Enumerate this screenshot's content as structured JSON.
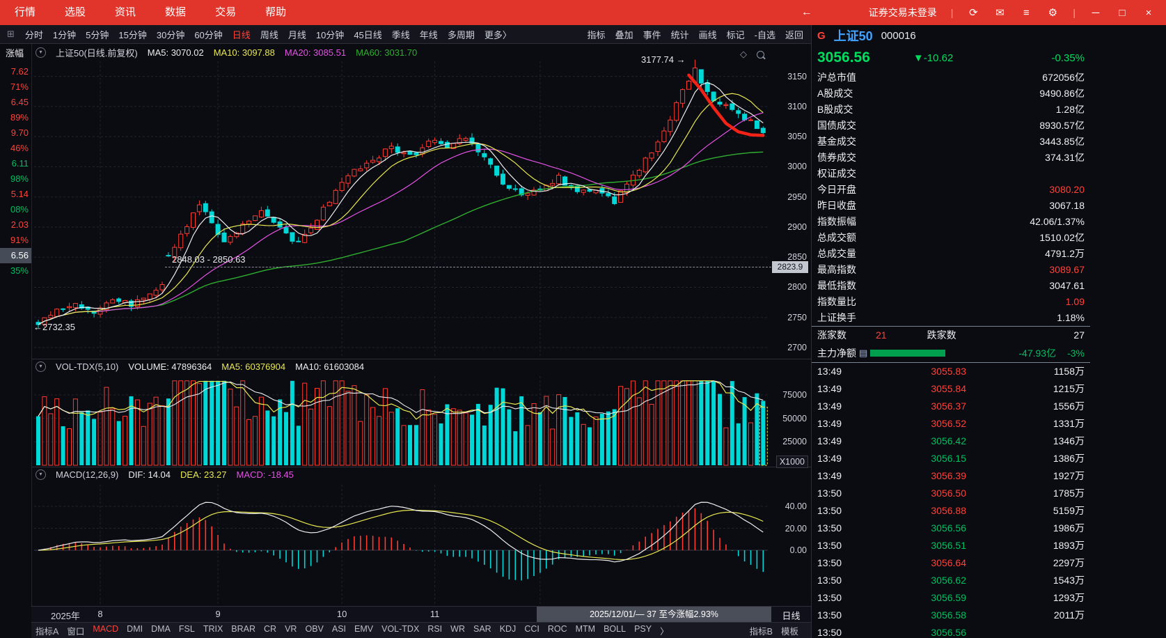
{
  "icons": {
    "diamond": "◇"
  },
  "menubar": {
    "items": [
      {
        "label": "行情"
      },
      {
        "label": "选股"
      },
      {
        "label": "资讯"
      },
      {
        "label": "数据"
      },
      {
        "label": "交易"
      },
      {
        "label": "帮助"
      }
    ],
    "back_glyph": "←",
    "status": "证券交易未登录",
    "sep": "|",
    "tool_icons": [
      {
        "name": "refresh-icon",
        "glyph": "⟳"
      },
      {
        "name": "mail-icon",
        "glyph": "✉"
      },
      {
        "name": "menu-list-icon",
        "glyph": "≡"
      },
      {
        "name": "settings-gear-icon",
        "glyph": "⚙"
      }
    ],
    "win_icons": [
      {
        "name": "minimize-icon",
        "glyph": "─"
      },
      {
        "name": "maximize-icon",
        "glyph": "□"
      },
      {
        "name": "close-icon",
        "glyph": "×"
      }
    ]
  },
  "toolbar": {
    "left_items": [
      {
        "label": "分时"
      },
      {
        "label": "1分钟"
      },
      {
        "label": "5分钟"
      },
      {
        "label": "15分钟"
      },
      {
        "label": "30分钟"
      },
      {
        "label": "60分钟"
      },
      {
        "label": "日线",
        "cls": "red"
      },
      {
        "label": "周线"
      },
      {
        "label": "月线"
      },
      {
        "label": "10分钟"
      },
      {
        "label": "45日线"
      },
      {
        "label": "季线"
      },
      {
        "label": "年线"
      },
      {
        "label": "多周期"
      },
      {
        "label": "更多〉"
      }
    ],
    "right_items": [
      {
        "label": "指标"
      },
      {
        "label": "叠加"
      },
      {
        "label": "事件"
      },
      {
        "label": "统计"
      },
      {
        "label": "画线"
      },
      {
        "label": "标记"
      },
      {
        "label": "-自选"
      },
      {
        "label": "返回"
      }
    ]
  },
  "left_strip": {
    "header": "涨幅",
    "rows": [
      {
        "t": "7.62",
        "cls": "red"
      },
      {
        "t": "71%",
        "cls": "red"
      },
      {
        "t": "6.45",
        "cls": "red"
      },
      {
        "t": "89%",
        "cls": "red"
      },
      {
        "t": "9.70",
        "cls": "red"
      },
      {
        "t": "46%",
        "cls": "red"
      },
      {
        "t": "6.11",
        "cls": "grn"
      },
      {
        "t": "98%",
        "cls": "grn"
      },
      {
        "t": "5.14",
        "cls": "red"
      },
      {
        "t": "08%",
        "cls": "grn"
      },
      {
        "t": "2.03",
        "cls": "red"
      },
      {
        "t": "91%",
        "cls": "red"
      },
      {
        "t": "6.56",
        "cls": "hl"
      },
      {
        "t": "35%",
        "cls": "grn"
      }
    ]
  },
  "kpanel": {
    "title": "上证50(日线.前复权)",
    "ma5": "MA5: 3070.02",
    "ma10": "MA10: 3097.88",
    "ma20": "MA20: 3085.51",
    "ma60": "MA60: 3031.70"
  },
  "volpanel": {
    "title": "VOL-TDX(5,10)",
    "volume": "VOLUME: 47896364",
    "ma5": "MA5: 60376904",
    "ma10": "MA10: 61603084"
  },
  "macdpanel": {
    "title": "MACD(12,26,9)",
    "dif": "DIF: 14.04",
    "dea": "DEA: 23.27",
    "macd": "MACD: -18.45"
  },
  "annotations": {
    "peak": "3177.74 →",
    "low": "←2732.35",
    "gap_range": "2848.03 - 2850.63",
    "price_tag": "2823.9"
  },
  "axis": {
    "k_levels": [
      3150,
      3100,
      3050,
      3000,
      2950,
      2900,
      2850,
      2800,
      2750,
      2700
    ],
    "vol_levels": [
      "75000",
      "50000",
      "25000"
    ],
    "vol_unit": "X1000",
    "macd_levels": [
      "40.00",
      "20.00",
      "0.00"
    ],
    "period": "日线"
  },
  "xaxis": {
    "year": "2025年",
    "range_cell": "2025/12/01/— 37 至今涨幅2.93%"
  },
  "tabs": {
    "left": [
      {
        "label": "指标A"
      },
      {
        "label": "窗口"
      },
      {
        "label": "MACD",
        "cls": "red"
      },
      {
        "label": "DMI"
      },
      {
        "label": "DMA"
      },
      {
        "label": "FSL"
      },
      {
        "label": "TRIX"
      },
      {
        "label": "BRAR"
      },
      {
        "label": "CR"
      },
      {
        "label": "VR"
      },
      {
        "label": "OBV"
      },
      {
        "label": "ASI"
      },
      {
        "label": "EMV"
      },
      {
        "label": "VOL-TDX"
      },
      {
        "label": "RSI"
      },
      {
        "label": "WR"
      },
      {
        "label": "SAR"
      },
      {
        "label": "KDJ"
      },
      {
        "label": "CCI"
      },
      {
        "label": "ROC"
      },
      {
        "label": "MTM"
      },
      {
        "label": "BOLL"
      },
      {
        "label": "PSY"
      },
      {
        "label": "〉"
      }
    ],
    "right": [
      {
        "label": "指标B"
      },
      {
        "label": "模板"
      }
    ]
  },
  "right": {
    "flag": "G",
    "name": "上证50",
    "code": "000016",
    "price": "3056.56",
    "change": "▼-10.62",
    "pct": "-0.35%",
    "stats": [
      {
        "label": "沪总市值",
        "value": "672056亿",
        "cls": ""
      },
      {
        "label": "A股成交",
        "value": "9490.86亿",
        "cls": ""
      },
      {
        "label": "B股成交",
        "value": "1.28亿",
        "cls": ""
      },
      {
        "label": "国债成交",
        "value": "8930.57亿",
        "cls": ""
      },
      {
        "label": "基金成交",
        "value": "3443.85亿",
        "cls": ""
      },
      {
        "label": "债券成交",
        "value": "374.31亿",
        "cls": ""
      },
      {
        "label": "权证成交",
        "value": "",
        "cls": ""
      },
      {
        "label": "今日开盘",
        "value": "3080.20",
        "cls": "red"
      },
      {
        "label": "昨日收盘",
        "value": "3067.18",
        "cls": ""
      },
      {
        "label": "指数振幅",
        "value": "42.06/1.37%",
        "cls": ""
      },
      {
        "label": "总成交额",
        "value": "1510.02亿",
        "cls": ""
      },
      {
        "label": "总成交量",
        "value": "4791.2万",
        "cls": ""
      },
      {
        "label": "最高指数",
        "value": "3089.67",
        "cls": "red"
      },
      {
        "label": "最低指数",
        "value": "3047.61",
        "cls": ""
      },
      {
        "label": "指数量比",
        "value": "1.09",
        "cls": "red"
      },
      {
        "label": "上证换手",
        "value": "1.18%",
        "cls": ""
      }
    ],
    "updown": {
      "up_label": "涨家数",
      "up": "21",
      "down_label": "跌家数",
      "down": "27"
    },
    "main_flow": {
      "label": "主力净额",
      "value": "-47.93亿",
      "pct": "-3%"
    },
    "ticks": [
      {
        "time": "13:49",
        "price": "3055.83",
        "cls": "red",
        "vol": "1158万"
      },
      {
        "time": "13:49",
        "price": "3055.84",
        "cls": "red",
        "vol": "1215万"
      },
      {
        "time": "13:49",
        "price": "3056.37",
        "cls": "red",
        "vol": "1556万"
      },
      {
        "time": "13:49",
        "price": "3056.52",
        "cls": "red",
        "vol": "1331万"
      },
      {
        "time": "13:49",
        "price": "3056.42",
        "cls": "grn",
        "vol": "1346万"
      },
      {
        "time": "13:49",
        "price": "3056.15",
        "cls": "grn",
        "vol": "1386万"
      },
      {
        "time": "13:49",
        "price": "3056.39",
        "cls": "red",
        "vol": "1927万"
      },
      {
        "time": "13:50",
        "price": "3056.50",
        "cls": "red",
        "vol": "1785万"
      },
      {
        "time": "13:50",
        "price": "3056.88",
        "cls": "red",
        "vol": "5159万"
      },
      {
        "time": "13:50",
        "price": "3056.56",
        "cls": "grn",
        "vol": "1986万"
      },
      {
        "time": "13:50",
        "price": "3056.51",
        "cls": "grn",
        "vol": "1893万"
      },
      {
        "time": "13:50",
        "price": "3056.64",
        "cls": "red",
        "vol": "2297万"
      },
      {
        "time": "13:50",
        "price": "3056.62",
        "cls": "grn",
        "vol": "1543万"
      },
      {
        "time": "13:50",
        "price": "3056.59",
        "cls": "grn",
        "vol": "1293万"
      },
      {
        "time": "13:50",
        "price": "3056.58",
        "cls": "grn",
        "vol": "2011万"
      },
      {
        "time": "13:50",
        "price": "3056.56",
        "cls": "grn",
        "vol": ""
      }
    ]
  },
  "chart_data": {
    "type": "candlestick",
    "symbol": "上证50",
    "period": "日线",
    "adjust": "前复权",
    "ylim": [
      2685,
      3175
    ],
    "count": 118,
    "seed": 11,
    "first_open": 2742,
    "last_close": 3056.56,
    "high_mark": 3177.74,
    "low_mark": 2732.35,
    "close_anchors": [
      [
        0,
        2738
      ],
      [
        3,
        2762
      ],
      [
        6,
        2772
      ],
      [
        9,
        2758
      ],
      [
        12,
        2780
      ],
      [
        15,
        2772
      ],
      [
        18,
        2790
      ],
      [
        20,
        2800
      ],
      [
        21,
        2856
      ],
      [
        23,
        2884
      ],
      [
        26,
        2940
      ],
      [
        28,
        2912
      ],
      [
        30,
        2872
      ],
      [
        33,
        2906
      ],
      [
        36,
        2924
      ],
      [
        39,
        2896
      ],
      [
        42,
        2872
      ],
      [
        45,
        2912
      ],
      [
        48,
        2962
      ],
      [
        51,
        2996
      ],
      [
        54,
        3012
      ],
      [
        57,
        3032
      ],
      [
        60,
        3016
      ],
      [
        63,
        3042
      ],
      [
        66,
        3036
      ],
      [
        69,
        3046
      ],
      [
        72,
        3020
      ],
      [
        75,
        2976
      ],
      [
        78,
        2952
      ],
      [
        81,
        2964
      ],
      [
        84,
        2982
      ],
      [
        87,
        2956
      ],
      [
        90,
        2966
      ],
      [
        93,
        2942
      ],
      [
        96,
        2986
      ],
      [
        99,
        3022
      ],
      [
        102,
        3082
      ],
      [
        104,
        3132
      ],
      [
        106,
        3162
      ],
      [
        108,
        3122
      ],
      [
        110,
        3106
      ],
      [
        112,
        3096
      ],
      [
        114,
        3082
      ],
      [
        116,
        3064
      ],
      [
        117,
        3056.56
      ]
    ],
    "month_ticks": [
      {
        "label": "8",
        "i": 10
      },
      {
        "label": "9",
        "i": 29
      },
      {
        "label": "10",
        "i": 49
      },
      {
        "label": "11",
        "i": 64
      },
      {
        "label": "",
        "i": 81
      }
    ],
    "colors": {
      "up": "#ff3b30",
      "down": "#00d7d7",
      "ma5": "#eceded",
      "ma10": "#e9e950",
      "ma20": "#e353e3",
      "ma60": "#2fae2f"
    }
  }
}
